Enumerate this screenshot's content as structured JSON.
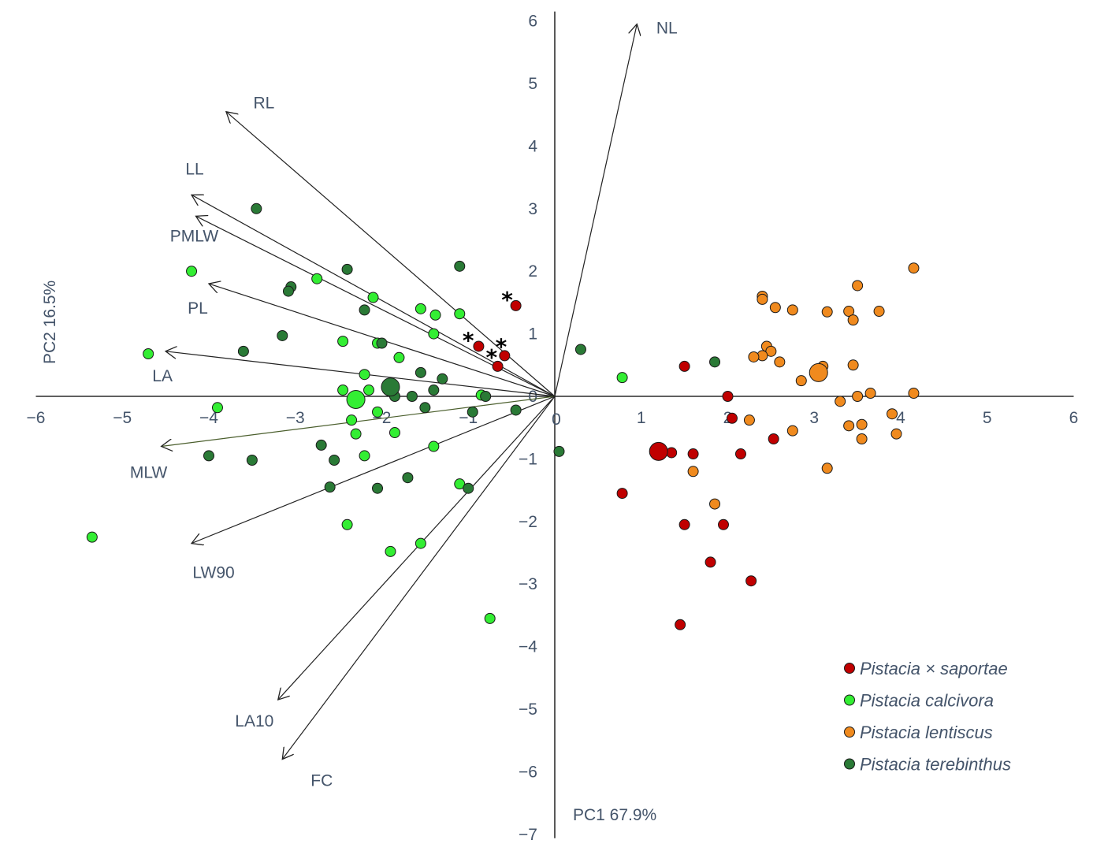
{
  "chart_data": {
    "type": "scatter",
    "xlabel": "PC1 67.9%",
    "ylabel": "PC2 16.5%",
    "xlim": [
      -6,
      6
    ],
    "ylim": [
      -7,
      6
    ],
    "x_ticks": [
      -6,
      -5,
      -4,
      -3,
      -2,
      -1,
      0,
      1,
      2,
      3,
      4,
      5,
      6
    ],
    "y_ticks": [
      -7,
      -6,
      -5,
      -4,
      -3,
      -2,
      -1,
      0,
      1,
      2,
      3,
      4,
      5,
      6
    ],
    "x_tick_labels": [
      "−6",
      "−5",
      "−4",
      "−3",
      "−2",
      "−1",
      "0",
      "1",
      "2",
      "3",
      "4",
      "5",
      "6"
    ],
    "y_tick_labels": [
      "−7",
      "−6",
      "−5",
      "−4",
      "−3",
      "−2",
      "−1",
      "0",
      "1",
      "2",
      "3",
      "4",
      "5",
      "6"
    ],
    "grid": false,
    "legend_position": "bottom-right",
    "loadings": [
      {
        "name": "NL",
        "x": 0.95,
        "y": 5.95
      },
      {
        "name": "RL",
        "x": -3.8,
        "y": 4.55
      },
      {
        "name": "LL",
        "x": -4.2,
        "y": 3.22
      },
      {
        "name": "PMLW",
        "x": -4.15,
        "y": 2.88
      },
      {
        "name": "PL",
        "x": -4.0,
        "y": 1.8
      },
      {
        "name": "LA",
        "x": -4.5,
        "y": 0.72
      },
      {
        "name": "MLW",
        "x": -4.55,
        "y": -0.8
      },
      {
        "name": "LW90",
        "x": -4.2,
        "y": -2.35
      },
      {
        "name": "LA10",
        "x": -3.2,
        "y": -4.85
      },
      {
        "name": "FC",
        "x": -3.15,
        "y": -5.8
      }
    ],
    "series": [
      {
        "name": "Pistacia × saportae",
        "color": "#c00000",
        "points": [
          [
            -0.45,
            1.45
          ],
          [
            -0.88,
            0.8
          ],
          [
            -0.58,
            0.65
          ],
          [
            -0.66,
            0.48
          ],
          [
            1.5,
            0.48
          ],
          [
            2.0,
            0.0
          ],
          [
            2.05,
            -0.35
          ],
          [
            1.35,
            -0.9
          ],
          [
            1.6,
            -0.92
          ],
          [
            2.15,
            -0.92
          ],
          [
            2.53,
            -0.68
          ],
          [
            0.78,
            -1.55
          ],
          [
            1.5,
            -2.05
          ],
          [
            1.95,
            -2.05
          ],
          [
            1.8,
            -2.65
          ],
          [
            2.27,
            -2.95
          ],
          [
            1.45,
            -3.65
          ]
        ],
        "centroid": [
          1.2,
          -0.88
        ]
      },
      {
        "name": "Pistacia calcivora",
        "color": "#33ee33",
        "points": [
          [
            -4.2,
            2.0
          ],
          [
            -4.7,
            0.68
          ],
          [
            -3.9,
            -0.18
          ],
          [
            -5.35,
            -2.25
          ],
          [
            -2.75,
            1.88
          ],
          [
            -2.1,
            1.58
          ],
          [
            -1.55,
            1.4
          ],
          [
            -1.1,
            1.32
          ],
          [
            -1.38,
            1.3
          ],
          [
            -1.4,
            1.0
          ],
          [
            -2.45,
            0.88
          ],
          [
            -1.8,
            0.62
          ],
          [
            -2.05,
            0.85
          ],
          [
            -2.2,
            0.35
          ],
          [
            -2.45,
            0.1
          ],
          [
            -2.15,
            0.1
          ],
          [
            -0.85,
            0.02
          ],
          [
            -2.35,
            -0.38
          ],
          [
            -2.05,
            -0.25
          ],
          [
            -2.3,
            -0.6
          ],
          [
            -1.85,
            -0.58
          ],
          [
            -2.2,
            -0.95
          ],
          [
            -1.4,
            -0.8
          ],
          [
            -1.1,
            -1.4
          ],
          [
            -2.4,
            -2.05
          ],
          [
            -1.9,
            -2.48
          ],
          [
            -1.55,
            -2.35
          ],
          [
            -0.75,
            -3.55
          ],
          [
            0.78,
            0.3
          ]
        ],
        "centroid": [
          -2.3,
          -0.05
        ]
      },
      {
        "name": "Pistacia lentiscus",
        "color": "#f08a1e",
        "points": [
          [
            4.15,
            2.05
          ],
          [
            3.5,
            1.77
          ],
          [
            2.4,
            1.6
          ],
          [
            2.4,
            1.55
          ],
          [
            2.55,
            1.42
          ],
          [
            2.75,
            1.38
          ],
          [
            3.15,
            1.35
          ],
          [
            3.4,
            1.36
          ],
          [
            3.75,
            1.36
          ],
          [
            3.45,
            1.22
          ],
          [
            2.45,
            0.8
          ],
          [
            2.5,
            0.72
          ],
          [
            2.4,
            0.65
          ],
          [
            2.3,
            0.63
          ],
          [
            2.6,
            0.55
          ],
          [
            3.1,
            0.48
          ],
          [
            3.05,
            0.42
          ],
          [
            3.45,
            0.5
          ],
          [
            2.85,
            0.25
          ],
          [
            3.5,
            0.0
          ],
          [
            3.65,
            0.05
          ],
          [
            3.3,
            -0.08
          ],
          [
            4.15,
            0.05
          ],
          [
            3.9,
            -0.28
          ],
          [
            3.55,
            -0.45
          ],
          [
            3.4,
            -0.47
          ],
          [
            3.55,
            -0.68
          ],
          [
            3.95,
            -0.6
          ],
          [
            2.75,
            -0.55
          ],
          [
            2.25,
            -0.38
          ],
          [
            1.6,
            -1.2
          ],
          [
            3.15,
            -1.15
          ],
          [
            1.85,
            -1.72
          ]
        ],
        "centroid": [
          3.05,
          0.38
        ]
      },
      {
        "name": "Pistacia terebinthus",
        "color": "#2a7a36",
        "points": [
          [
            -3.45,
            3.0
          ],
          [
            -1.1,
            2.08
          ],
          [
            -2.4,
            2.03
          ],
          [
            -3.05,
            1.75
          ],
          [
            -3.08,
            1.68
          ],
          [
            -2.2,
            1.38
          ],
          [
            -3.15,
            0.97
          ],
          [
            -2.0,
            0.85
          ],
          [
            -3.6,
            0.72
          ],
          [
            0.3,
            0.75
          ],
          [
            1.85,
            0.55
          ],
          [
            -1.55,
            0.38
          ],
          [
            -1.3,
            0.28
          ],
          [
            -1.4,
            0.1
          ],
          [
            -1.85,
            0.0
          ],
          [
            -1.65,
            0.0
          ],
          [
            -1.5,
            -0.18
          ],
          [
            -0.8,
            0.0
          ],
          [
            -0.95,
            -0.25
          ],
          [
            -0.45,
            -0.22
          ],
          [
            -2.7,
            -0.78
          ],
          [
            -2.55,
            -1.02
          ],
          [
            -4.0,
            -0.95
          ],
          [
            -3.5,
            -1.02
          ],
          [
            -1.7,
            -1.3
          ],
          [
            -2.6,
            -1.45
          ],
          [
            -2.05,
            -1.47
          ],
          [
            -1.0,
            -1.47
          ],
          [
            0.05,
            -0.88
          ]
        ],
        "centroid": [
          -1.9,
          0.15
        ]
      }
    ],
    "annotations": [
      {
        "text": "*",
        "x": -0.55,
        "y": 1.6
      },
      {
        "text": "*",
        "x": -1.0,
        "y": 0.95
      },
      {
        "text": "*",
        "x": -0.62,
        "y": 0.85
      },
      {
        "text": "*",
        "x": -0.73,
        "y": 0.68
      }
    ]
  }
}
